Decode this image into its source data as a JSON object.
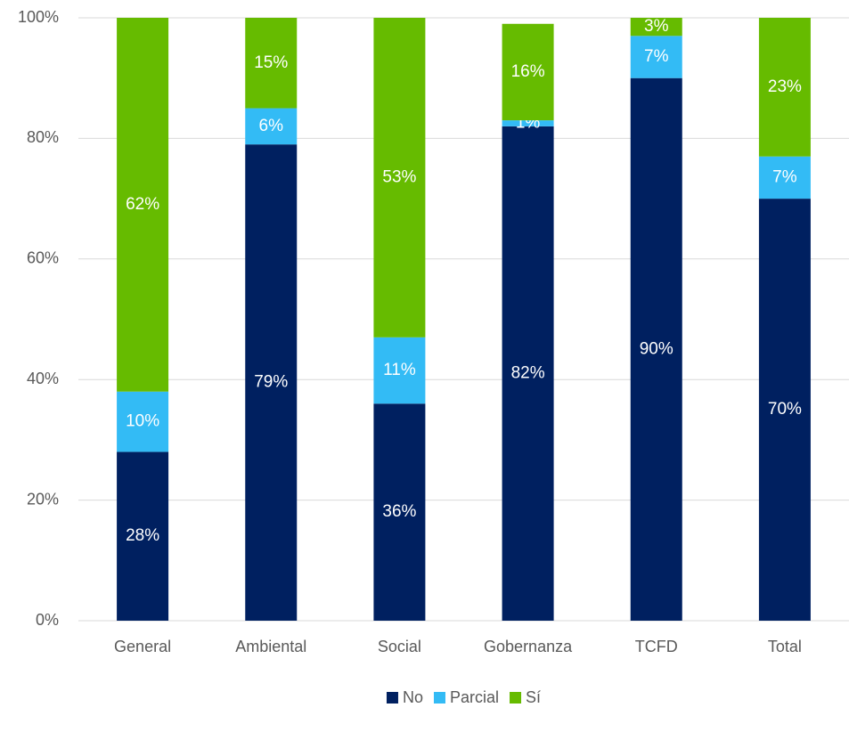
{
  "chart_data": {
    "type": "bar",
    "stacked": true,
    "categories": [
      "General",
      "Ambiental",
      "Social",
      "Gobernanza",
      "TCFD",
      "Total"
    ],
    "series": [
      {
        "name": "No",
        "color": "#002060",
        "values": [
          28,
          79,
          36,
          82,
          90,
          70
        ],
        "value_labels": [
          "28%",
          "79%",
          "36%",
          "82%",
          "90%",
          "70%"
        ]
      },
      {
        "name": "Parcial",
        "color": "#33bbf5",
        "values": [
          10,
          6,
          11,
          1,
          7,
          7
        ],
        "value_labels": [
          "10%",
          "6%",
          "11%",
          "1%",
          "7%",
          "7%"
        ]
      },
      {
        "name": "Sí",
        "color": "#66bb00",
        "values": [
          62,
          15,
          53,
          16,
          3,
          23
        ],
        "value_labels": [
          "62%",
          "15%",
          "53%",
          "16%",
          "3%",
          "23%"
        ]
      }
    ],
    "ylim": [
      0,
      100
    ],
    "yticks": [
      {
        "value": 0,
        "label": "0%"
      },
      {
        "value": 20,
        "label": "20%"
      },
      {
        "value": 40,
        "label": "40%"
      },
      {
        "value": 60,
        "label": "60%"
      },
      {
        "value": 80,
        "label": "80%"
      },
      {
        "value": 100,
        "label": "100%"
      }
    ],
    "grid": true,
    "legend": "bottom"
  }
}
